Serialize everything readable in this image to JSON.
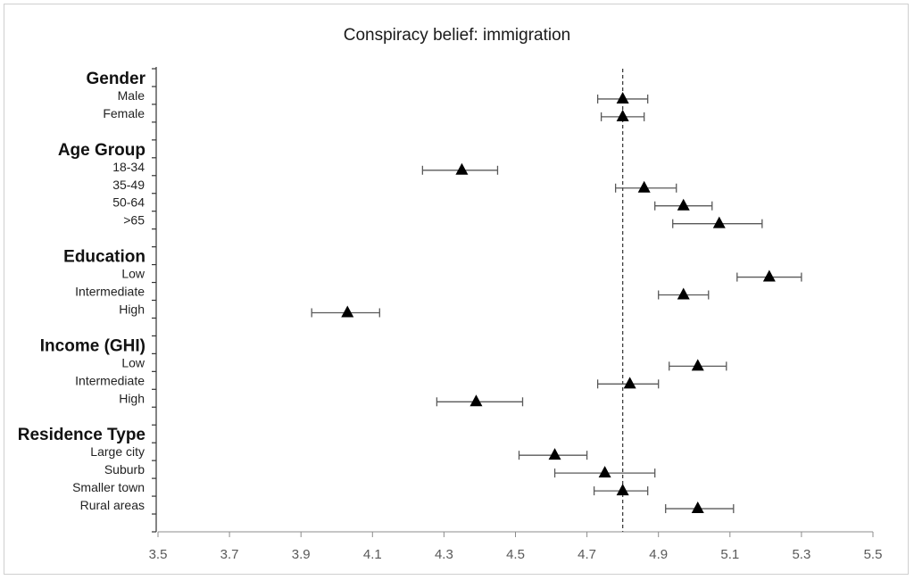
{
  "chart_data": {
    "type": "scatter",
    "title": "Conspiracy belief: immigration",
    "xlabel": "",
    "ylabel": "",
    "xlim": [
      3.5,
      5.5
    ],
    "x_ticks": [
      "3.5",
      "3.7",
      "3.9",
      "4.1",
      "4.3",
      "4.5",
      "4.7",
      "4.9",
      "5.1",
      "5.3",
      "5.5"
    ],
    "reference_line": 4.8,
    "marker": "triangle",
    "marker_color": "#000000",
    "error_bar_color": "#595959",
    "reference_line_color": "#404040",
    "groups": [
      {
        "name": "Gender",
        "items": [
          {
            "label": "Male",
            "value": 4.8,
            "ci": [
              4.73,
              4.87
            ]
          },
          {
            "label": "Female",
            "value": 4.8,
            "ci": [
              4.74,
              4.86
            ]
          }
        ]
      },
      {
        "name": "Age Group",
        "items": [
          {
            "label": "18-34",
            "value": 4.35,
            "ci": [
              4.24,
              4.45
            ]
          },
          {
            "label": "35-49",
            "value": 4.86,
            "ci": [
              4.78,
              4.95
            ]
          },
          {
            "label": "50-64",
            "value": 4.97,
            "ci": [
              4.89,
              5.05
            ]
          },
          {
            "label": ">65",
            "value": 5.07,
            "ci": [
              4.94,
              5.19
            ]
          }
        ]
      },
      {
        "name": "Education",
        "items": [
          {
            "label": "Low",
            "value": 5.21,
            "ci": [
              5.12,
              5.3
            ]
          },
          {
            "label": "Intermediate",
            "value": 4.97,
            "ci": [
              4.9,
              5.04
            ]
          },
          {
            "label": "High",
            "value": 4.03,
            "ci": [
              3.93,
              4.12
            ]
          }
        ]
      },
      {
        "name": "Income (GHI)",
        "items": [
          {
            "label": "Low",
            "value": 5.01,
            "ci": [
              4.93,
              5.09
            ]
          },
          {
            "label": "Intermediate",
            "value": 4.82,
            "ci": [
              4.73,
              4.9
            ]
          },
          {
            "label": "High",
            "value": 4.39,
            "ci": [
              4.28,
              4.52
            ]
          }
        ]
      },
      {
        "name": "Residence Type",
        "items": [
          {
            "label": "Large city",
            "value": 4.61,
            "ci": [
              4.51,
              4.7
            ]
          },
          {
            "label": "Suburb",
            "value": 4.75,
            "ci": [
              4.61,
              4.89
            ]
          },
          {
            "label": "Smaller town",
            "value": 4.8,
            "ci": [
              4.72,
              4.87
            ]
          },
          {
            "label": "Rural areas",
            "value": 5.01,
            "ci": [
              4.92,
              5.11
            ]
          }
        ]
      }
    ]
  }
}
